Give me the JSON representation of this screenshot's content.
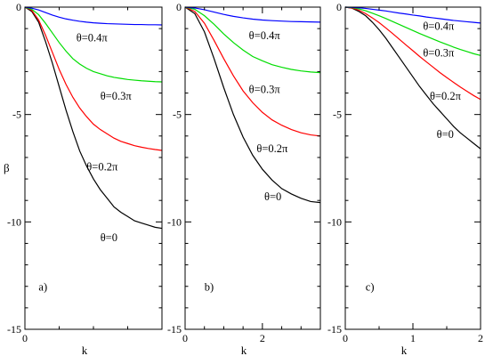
{
  "colors": {
    "theta_0": "#000000",
    "theta_02": "#ff0000",
    "theta_03": "#00dd00",
    "theta_04": "#0000ff",
    "axes": "#000000",
    "background": "#ffffff"
  },
  "chart_data": [
    {
      "type": "line",
      "panel": "a)",
      "xlabel": "k",
      "ylabel": "β",
      "xlim": [
        0,
        2
      ],
      "ylim": [
        -15,
        0
      ],
      "xticks": [
        {
          "value": 0,
          "label": "0"
        }
      ],
      "yticks": [
        {
          "value": 0,
          "label": "0"
        },
        {
          "value": -5,
          "label": "-5"
        },
        {
          "value": -10,
          "label": "-10"
        },
        {
          "value": -15,
          "label": "-15"
        }
      ],
      "grid": false,
      "series": [
        {
          "name": "θ=0",
          "color_key": "theta_0",
          "x": [
            0,
            0.1,
            0.2,
            0.3,
            0.4,
            0.5,
            0.6,
            0.7,
            0.8,
            0.9,
            1.0,
            1.1,
            1.2,
            1.3,
            1.4,
            1.5,
            1.6,
            1.7,
            1.8,
            1.9,
            2.0
          ],
          "y": [
            0,
            -0.2,
            -0.7,
            -1.6,
            -2.6,
            -3.7,
            -4.8,
            -5.8,
            -6.7,
            -7.4,
            -8.0,
            -8.5,
            -8.9,
            -9.3,
            -9.55,
            -9.75,
            -9.95,
            -10.05,
            -10.15,
            -10.25,
            -10.3
          ]
        },
        {
          "name": "θ=0.2π",
          "color_key": "theta_02",
          "x": [
            0,
            0.1,
            0.2,
            0.3,
            0.4,
            0.5,
            0.6,
            0.7,
            0.8,
            0.9,
            1.0,
            1.1,
            1.2,
            1.3,
            1.4,
            1.5,
            1.6,
            1.7,
            1.8,
            1.9,
            2.0
          ],
          "y": [
            0,
            -0.15,
            -0.6,
            -1.3,
            -2.1,
            -2.9,
            -3.6,
            -4.2,
            -4.7,
            -5.1,
            -5.45,
            -5.7,
            -5.9,
            -6.1,
            -6.25,
            -6.35,
            -6.45,
            -6.52,
            -6.58,
            -6.63,
            -6.67
          ]
        },
        {
          "name": "θ=0.3π",
          "color_key": "theta_03",
          "x": [
            0,
            0.1,
            0.2,
            0.3,
            0.4,
            0.5,
            0.6,
            0.7,
            0.8,
            0.9,
            1.0,
            1.1,
            1.2,
            1.3,
            1.4,
            1.5,
            1.6,
            1.7,
            1.8,
            1.9,
            2.0
          ],
          "y": [
            0,
            -0.1,
            -0.35,
            -0.75,
            -1.2,
            -1.65,
            -2.05,
            -2.4,
            -2.65,
            -2.85,
            -3.0,
            -3.1,
            -3.2,
            -3.27,
            -3.32,
            -3.37,
            -3.4,
            -3.43,
            -3.45,
            -3.47,
            -3.48
          ]
        },
        {
          "name": "θ=0.4π",
          "color_key": "theta_04",
          "x": [
            0,
            0.1,
            0.2,
            0.3,
            0.4,
            0.5,
            0.6,
            0.7,
            0.8,
            0.9,
            1.0,
            1.1,
            1.2,
            1.3,
            1.4,
            1.5,
            1.6,
            1.7,
            1.8,
            1.9,
            2.0
          ],
          "y": [
            0,
            -0.05,
            -0.13,
            -0.25,
            -0.37,
            -0.47,
            -0.55,
            -0.61,
            -0.66,
            -0.7,
            -0.73,
            -0.75,
            -0.77,
            -0.78,
            -0.79,
            -0.8,
            -0.81,
            -0.81,
            -0.82,
            -0.82,
            -0.83
          ]
        }
      ],
      "annotations": [
        {
          "text": "θ=0.4π",
          "x": 0.75,
          "y": -1.6
        },
        {
          "text": "θ=0.3π",
          "x": 1.1,
          "y": -4.3
        },
        {
          "text": "θ=0.2π",
          "x": 0.9,
          "y": -7.6
        },
        {
          "text": "θ=0",
          "x": 1.1,
          "y": -10.9
        },
        {
          "text": "a)",
          "x": 0.2,
          "y": -13.2
        }
      ]
    },
    {
      "type": "line",
      "panel": "b)",
      "xlabel": "k",
      "ylabel": "",
      "xlim": [
        0,
        3.5
      ],
      "ylim": [
        -15,
        0
      ],
      "xticks": [
        {
          "value": 0,
          "label": "0"
        },
        {
          "value": 2,
          "label": "2"
        }
      ],
      "yticks": [
        {
          "value": 0,
          "label": "0"
        },
        {
          "value": -5,
          "label": "-5"
        },
        {
          "value": -10,
          "label": "-10"
        },
        {
          "value": -15,
          "label": "-15"
        }
      ],
      "grid": false,
      "series": [
        {
          "name": "θ=0",
          "color_key": "theta_0",
          "x": [
            0,
            0.25,
            0.5,
            0.75,
            1.0,
            1.25,
            1.5,
            1.75,
            2.0,
            2.25,
            2.5,
            2.75,
            3.0,
            3.25,
            3.5
          ],
          "y": [
            0,
            -0.3,
            -1.15,
            -2.4,
            -3.75,
            -5.0,
            -6.05,
            -6.9,
            -7.55,
            -8.05,
            -8.45,
            -8.7,
            -8.9,
            -9.05,
            -9.1
          ]
        },
        {
          "name": "θ=0.2π",
          "color_key": "theta_02",
          "x": [
            0,
            0.25,
            0.5,
            0.75,
            1.0,
            1.25,
            1.5,
            1.75,
            2.0,
            2.25,
            2.5,
            2.75,
            3.0,
            3.25,
            3.5
          ],
          "y": [
            0,
            -0.2,
            -0.75,
            -1.55,
            -2.4,
            -3.2,
            -3.9,
            -4.45,
            -4.9,
            -5.25,
            -5.5,
            -5.7,
            -5.85,
            -5.95,
            -6.0
          ]
        },
        {
          "name": "θ=0.3π",
          "color_key": "theta_03",
          "x": [
            0,
            0.25,
            0.5,
            0.75,
            1.0,
            1.25,
            1.5,
            1.75,
            2.0,
            2.25,
            2.5,
            2.75,
            3.0,
            3.25,
            3.5
          ],
          "y": [
            0,
            -0.1,
            -0.4,
            -0.8,
            -1.25,
            -1.65,
            -2.0,
            -2.3,
            -2.5,
            -2.68,
            -2.8,
            -2.9,
            -2.97,
            -3.02,
            -3.05
          ]
        },
        {
          "name": "θ=0.4π",
          "color_key": "theta_04",
          "x": [
            0,
            0.25,
            0.5,
            0.75,
            1.0,
            1.25,
            1.5,
            1.75,
            2.0,
            2.25,
            2.5,
            2.75,
            3.0,
            3.25,
            3.5
          ],
          "y": [
            0,
            -0.04,
            -0.12,
            -0.23,
            -0.34,
            -0.43,
            -0.5,
            -0.56,
            -0.6,
            -0.63,
            -0.65,
            -0.67,
            -0.68,
            -0.69,
            -0.7
          ]
        }
      ],
      "annotations": [
        {
          "text": "θ=0.4π",
          "x": 1.65,
          "y": -1.5
        },
        {
          "text": "θ=0.3π",
          "x": 1.65,
          "y": -4.0
        },
        {
          "text": "θ=0.2π",
          "x": 1.85,
          "y": -6.75
        },
        {
          "text": "θ=0",
          "x": 2.05,
          "y": -9.0
        },
        {
          "text": "b)",
          "x": 0.5,
          "y": -13.2
        }
      ]
    },
    {
      "type": "line",
      "panel": "c)",
      "xlabel": "k",
      "ylabel": "",
      "xlim": [
        0,
        2
      ],
      "ylim": [
        -15,
        0
      ],
      "xticks": [
        {
          "value": 0,
          "label": "0"
        },
        {
          "value": 1,
          "label": "1"
        },
        {
          "value": 2,
          "label": "2"
        }
      ],
      "yticks": [
        {
          "value": 0,
          "label": "0"
        },
        {
          "value": -5,
          "label": "-5"
        },
        {
          "value": -10,
          "label": "-10"
        },
        {
          "value": -15,
          "label": "-15"
        }
      ],
      "grid": false,
      "series": [
        {
          "name": "θ=0",
          "color_key": "theta_0",
          "x": [
            0,
            0.1,
            0.2,
            0.3,
            0.4,
            0.5,
            0.6,
            0.7,
            0.8,
            0.9,
            1.0,
            1.1,
            1.2,
            1.3,
            1.4,
            1.5,
            1.6,
            1.7,
            1.8,
            1.9,
            2.0
          ],
          "y": [
            0,
            -0.05,
            -0.2,
            -0.4,
            -0.7,
            -1.05,
            -1.45,
            -1.9,
            -2.35,
            -2.8,
            -3.25,
            -3.7,
            -4.1,
            -4.5,
            -4.85,
            -5.2,
            -5.55,
            -5.85,
            -6.1,
            -6.35,
            -6.6
          ]
        },
        {
          "name": "θ=0.2π",
          "color_key": "theta_02",
          "x": [
            0,
            0.1,
            0.2,
            0.3,
            0.4,
            0.5,
            0.6,
            0.7,
            0.8,
            0.9,
            1.0,
            1.1,
            1.2,
            1.3,
            1.4,
            1.5,
            1.6,
            1.7,
            1.8,
            1.9,
            2.0
          ],
          "y": [
            0,
            -0.04,
            -0.14,
            -0.3,
            -0.5,
            -0.72,
            -0.97,
            -1.23,
            -1.5,
            -1.77,
            -2.03,
            -2.3,
            -2.55,
            -2.8,
            -3.05,
            -3.28,
            -3.5,
            -3.72,
            -3.92,
            -4.12,
            -4.3
          ]
        },
        {
          "name": "θ=0.3π",
          "color_key": "theta_03",
          "x": [
            0,
            0.1,
            0.2,
            0.3,
            0.4,
            0.5,
            0.6,
            0.7,
            0.8,
            0.9,
            1.0,
            1.1,
            1.2,
            1.3,
            1.4,
            1.5,
            1.6,
            1.7,
            1.8,
            1.9,
            2.0
          ],
          "y": [
            0,
            -0.02,
            -0.08,
            -0.17,
            -0.28,
            -0.4,
            -0.53,
            -0.67,
            -0.81,
            -0.95,
            -1.09,
            -1.23,
            -1.36,
            -1.49,
            -1.62,
            -1.74,
            -1.86,
            -1.97,
            -2.07,
            -2.17,
            -2.25
          ]
        },
        {
          "name": "θ=0.4π",
          "color_key": "theta_04",
          "x": [
            0,
            0.1,
            0.2,
            0.3,
            0.4,
            0.5,
            0.6,
            0.7,
            0.8,
            0.9,
            1.0,
            1.1,
            1.2,
            1.3,
            1.4,
            1.5,
            1.6,
            1.7,
            1.8,
            1.9,
            2.0
          ],
          "y": [
            0,
            -0.01,
            -0.03,
            -0.06,
            -0.1,
            -0.14,
            -0.18,
            -0.23,
            -0.28,
            -0.32,
            -0.37,
            -0.41,
            -0.46,
            -0.5,
            -0.54,
            -0.58,
            -0.62,
            -0.65,
            -0.68,
            -0.71,
            -0.74
          ]
        }
      ],
      "annotations": [
        {
          "text": "θ=0.4π",
          "x": 1.15,
          "y": -1.05
        },
        {
          "text": "θ=0.3π",
          "x": 1.15,
          "y": -2.3
        },
        {
          "text": "θ=0.2π",
          "x": 1.25,
          "y": -4.3
        },
        {
          "text": "θ=0",
          "x": 1.35,
          "y": -6.1
        },
        {
          "text": "c)",
          "x": 0.3,
          "y": -13.2
        }
      ]
    }
  ]
}
